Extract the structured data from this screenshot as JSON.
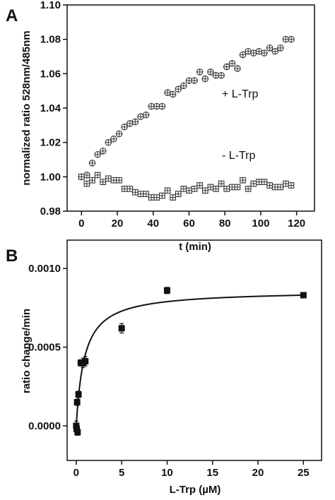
{
  "chart_data": [
    {
      "panel_label": "A",
      "type": "scatter",
      "xlabel": "t (min)",
      "ylabel": "normalized ratio 528nm/485nm",
      "xlim": [
        -8,
        130
      ],
      "ylim": [
        0.98,
        1.1
      ],
      "x_ticks": [
        0,
        20,
        40,
        60,
        80,
        100,
        120
      ],
      "y_ticks": [
        0.98,
        1.0,
        1.02,
        1.04,
        1.06,
        1.08,
        1.1
      ],
      "y_tick_labels": [
        "0.98",
        "1.00",
        "1.02",
        "1.04",
        "1.06",
        "1.08",
        "1.10"
      ],
      "grid": false,
      "series": [
        {
          "name": "+ L-Trp",
          "marker": "circle-cross",
          "points": [
            [
              0,
              1.0
            ],
            [
              3,
              1.001
            ],
            [
              6,
              1.008
            ],
            [
              9,
              1.013
            ],
            [
              12,
              1.015
            ],
            [
              15,
              1.02
            ],
            [
              18,
              1.022
            ],
            [
              21,
              1.025
            ],
            [
              24,
              1.029
            ],
            [
              27,
              1.031
            ],
            [
              30,
              1.032
            ],
            [
              33,
              1.035
            ],
            [
              36,
              1.036
            ],
            [
              39,
              1.041
            ],
            [
              42,
              1.041
            ],
            [
              45,
              1.041
            ],
            [
              48,
              1.049
            ],
            [
              51,
              1.048
            ],
            [
              54,
              1.051
            ],
            [
              57,
              1.053
            ],
            [
              60,
              1.056
            ],
            [
              63,
              1.056
            ],
            [
              66,
              1.061
            ],
            [
              69,
              1.057
            ],
            [
              72,
              1.061
            ],
            [
              75,
              1.059
            ],
            [
              78,
              1.059
            ],
            [
              81,
              1.064
            ],
            [
              84,
              1.066
            ],
            [
              87,
              1.063
            ],
            [
              90,
              1.071
            ],
            [
              93,
              1.073
            ],
            [
              96,
              1.072
            ],
            [
              99,
              1.073
            ],
            [
              102,
              1.072
            ],
            [
              105,
              1.075
            ],
            [
              108,
              1.073
            ],
            [
              111,
              1.075
            ],
            [
              114,
              1.08
            ],
            [
              117,
              1.08
            ]
          ]
        },
        {
          "name": "- L-Trp",
          "marker": "square-cross",
          "points": [
            [
              0,
              1.0
            ],
            [
              3,
              0.996
            ],
            [
              6,
              0.998
            ],
            [
              9,
              1.001
            ],
            [
              12,
              0.997
            ],
            [
              15,
              0.999
            ],
            [
              18,
              0.998
            ],
            [
              21,
              0.998
            ],
            [
              24,
              0.993
            ],
            [
              27,
              0.993
            ],
            [
              30,
              0.991
            ],
            [
              33,
              0.99
            ],
            [
              36,
              0.99
            ],
            [
              39,
              0.988
            ],
            [
              42,
              0.988
            ],
            [
              45,
              0.989
            ],
            [
              48,
              0.992
            ],
            [
              51,
              0.988
            ],
            [
              54,
              0.99
            ],
            [
              57,
              0.993
            ],
            [
              60,
              0.992
            ],
            [
              63,
              0.993
            ],
            [
              66,
              0.995
            ],
            [
              69,
              0.992
            ],
            [
              72,
              0.994
            ],
            [
              75,
              0.993
            ],
            [
              78,
              0.996
            ],
            [
              81,
              0.993
            ],
            [
              84,
              0.994
            ],
            [
              87,
              0.994
            ],
            [
              90,
              0.998
            ],
            [
              93,
              0.993
            ],
            [
              96,
              0.996
            ],
            [
              99,
              0.997
            ],
            [
              102,
              0.997
            ],
            [
              105,
              0.995
            ],
            [
              108,
              0.994
            ],
            [
              111,
              0.994
            ],
            [
              114,
              0.996
            ],
            [
              117,
              0.995
            ]
          ]
        }
      ],
      "annotations": [
        "+ L-Trp",
        "- L-Trp"
      ]
    },
    {
      "panel_label": "B",
      "type": "scatter",
      "xlabel": "L-Trp (µM)",
      "ylabel": "ratio change/min",
      "xlim": [
        -1,
        27
      ],
      "ylim": [
        -0.00022,
        0.00118
      ],
      "x_ticks": [
        0,
        5,
        10,
        15,
        20,
        25
      ],
      "y_ticks": [
        0.0,
        0.0005,
        0.001
      ],
      "y_tick_labels": [
        "0.0000",
        "0.0005",
        "0.0010"
      ],
      "grid": false,
      "series": [
        {
          "name": "",
          "marker": "filled-square",
          "points": [
            {
              "x": 0.0,
              "y": 0.0,
              "err": 3e-05
            },
            {
              "x": 0.05,
              "y": -2e-05,
              "err": 2e-05
            },
            {
              "x": 0.1,
              "y": 0.00015,
              "err": 2e-05
            },
            {
              "x": 0.15,
              "y": -4e-05,
              "err": 2e-05
            },
            {
              "x": 0.25,
              "y": 0.0002,
              "err": 2e-05
            },
            {
              "x": 0.5,
              "y": 0.0004,
              "err": 2e-05
            },
            {
              "x": 0.75,
              "y": 0.0004,
              "err": 3e-05
            },
            {
              "x": 1.0,
              "y": 0.00041,
              "err": 3e-05
            },
            {
              "x": 5.0,
              "y": 0.00062,
              "err": 3e-05
            },
            {
              "x": 10.0,
              "y": 0.00086,
              "err": 2e-05
            },
            {
              "x": 25.0,
              "y": 0.00083,
              "err": 1e-05
            }
          ]
        }
      ],
      "fit_curve": {
        "type": "hyperbolic",
        "vmax": 0.00086,
        "km": 0.9
      }
    }
  ]
}
